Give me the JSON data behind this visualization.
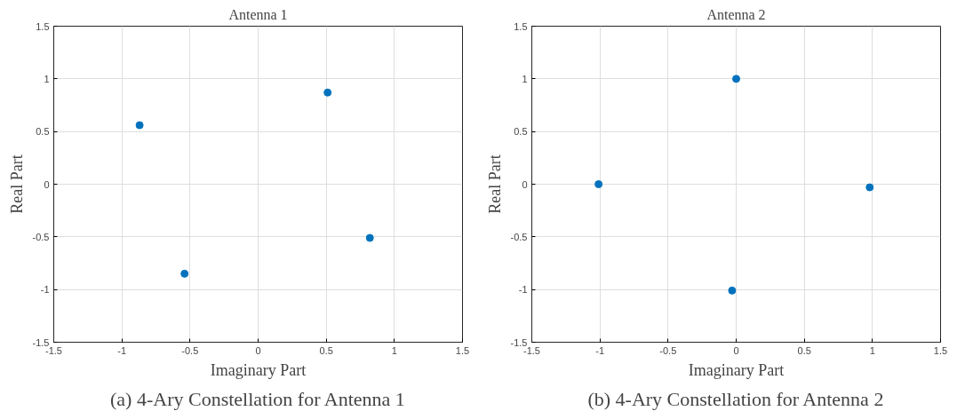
{
  "chart_data": [
    {
      "type": "scatter",
      "title": "Antenna 1",
      "xlabel": "Imaginary Part",
      "ylabel": "Real Part",
      "annotations": [
        "(a) 4-Ary Constellation for Antenna 1"
      ],
      "x": [
        -0.87,
        0.51,
        0.82,
        -0.54
      ],
      "series": [
        {
          "color": "#0072bd",
          "values": [
            0.56,
            0.87,
            -0.51,
            -0.85
          ]
        }
      ],
      "xlim": [
        -1.5,
        1.5
      ],
      "ylim": [
        -1.5,
        1.5
      ],
      "xticks": [
        -1.5,
        -1,
        -0.5,
        0,
        0.5,
        1,
        1.5
      ],
      "yticks": [
        -1.5,
        -1,
        -0.5,
        0,
        0.5,
        1,
        1.5
      ],
      "grid": true,
      "marker": "circle"
    },
    {
      "type": "scatter",
      "title": "Antenna 2",
      "xlabel": "Imaginary Part",
      "ylabel": "Real Part",
      "annotations": [
        "(b) 4-Ary Constellation for Antenna 2"
      ],
      "x": [
        0,
        -1.01,
        0.98,
        -0.03
      ],
      "series": [
        {
          "color": "#0072bd",
          "values": [
            1.0,
            0,
            -0.03,
            -1.01
          ]
        }
      ],
      "xlim": [
        -1.5,
        1.5
      ],
      "ylim": [
        -1.5,
        1.5
      ],
      "xticks": [
        -1.5,
        -1,
        -0.5,
        0,
        0.5,
        1,
        1.5
      ],
      "yticks": [
        -1.5,
        -1,
        -0.5,
        0,
        0.5,
        1,
        1.5
      ],
      "grid": true,
      "marker": "circle"
    }
  ]
}
